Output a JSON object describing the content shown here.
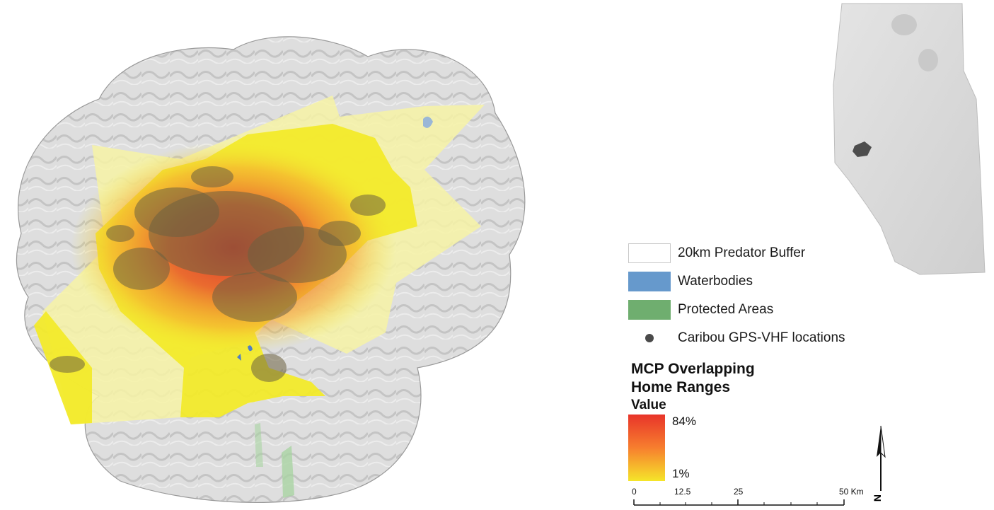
{
  "legend": {
    "items": [
      {
        "label": "20km Predator Buffer",
        "fill": "#ffffff",
        "stroke": "#c8c8c8",
        "kind": "box"
      },
      {
        "label": "Waterbodies",
        "fill": "#6699cc",
        "stroke": "#6699cc",
        "kind": "box"
      },
      {
        "label": "Protected Areas",
        "fill": "#6fae6f",
        "stroke": "#6fae6f",
        "kind": "box"
      },
      {
        "label": "Caribou GPS-VHF locations",
        "fill": "#4a4a4a",
        "kind": "dot"
      }
    ],
    "title_line1": "MCP Overlapping",
    "title_line2": "Home Ranges",
    "value_label": "Value",
    "ramp": {
      "high_label": "84%",
      "low_label": "1%",
      "high_color": "#e8342a",
      "mid_color": "#f77e2e",
      "low_color": "#f5e52a"
    }
  },
  "scale_bar": {
    "ticks": [
      "0",
      "12.5",
      "25",
      "50 Km"
    ]
  },
  "north_arrow": {
    "label": "N"
  },
  "colors": {
    "hillshade": "#d9d9d9",
    "buffer": "#e6e6e6",
    "home_range_yellow": "#f2ea2a",
    "home_range_pale": "#f7f3a6",
    "core_red": "#d8302c",
    "locations": "#6b6040",
    "inset_province": "#d4d4d4",
    "inset_study_area": "#4d4d4d"
  }
}
